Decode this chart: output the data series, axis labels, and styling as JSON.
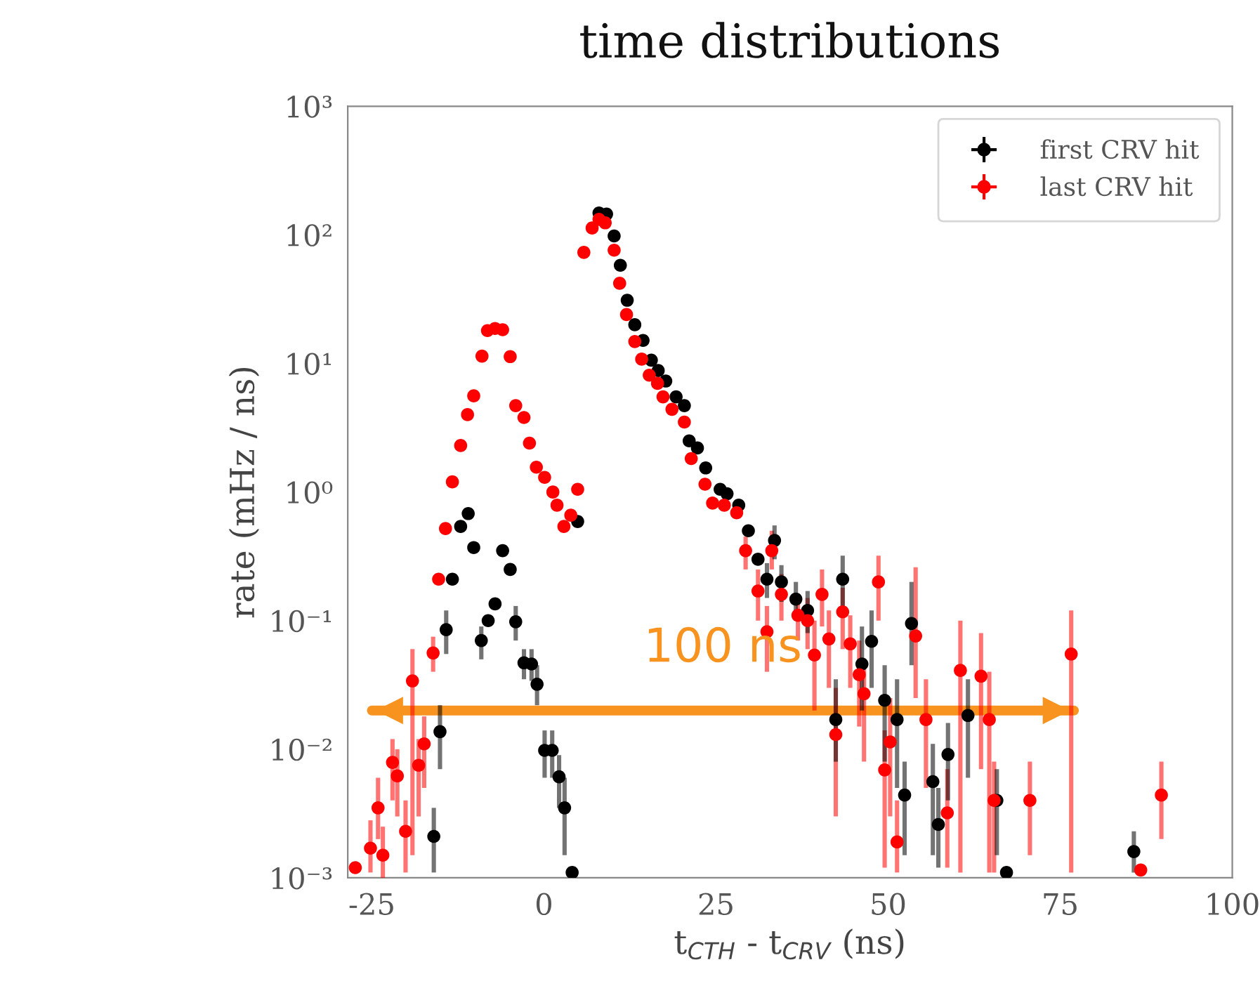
{
  "chart_data": {
    "type": "scatter",
    "title": "time distributions",
    "xlabel": "t$_{CTH}$ - t$_{CRV}$ (ns)",
    "ylabel": "rate (mHz / ns)",
    "log": "y",
    "grid": false,
    "legend": "top right",
    "marker": "circle",
    "xlim": [
      -28.5,
      100
    ],
    "xticks": [
      -25,
      0,
      25,
      50,
      75,
      100
    ],
    "ylim": [
      0.001,
      1000
    ],
    "yticks": [
      {
        "value": 0.001,
        "label": "10⁻³"
      },
      {
        "value": 0.01,
        "label": "10⁻²"
      },
      {
        "value": 0.1,
        "label": "10⁻¹"
      },
      {
        "value": 1,
        "label": "10⁰"
      },
      {
        "value": 10,
        "label": "10¹"
      },
      {
        "value": 100,
        "label": "10²"
      },
      {
        "value": 1000,
        "label": "10³"
      }
    ],
    "annotations": [
      "100 ns"
    ],
    "series": [
      {
        "type": "line",
        "marker": "none",
        "color": "#f7931e",
        "x": [
          -25,
          77
        ],
        "values": [
          0.02,
          0.02
        ]
      },
      {
        "name": "first CRV hit",
        "color": "#000000",
        "x": [
          -16.0,
          -15.1,
          -14.2,
          -13.3,
          -12.1,
          -11.0,
          -10.2,
          -9.1,
          -8.1,
          -7.1,
          -6.0,
          -4.9,
          -4.1,
          -2.9,
          -1.8,
          -1.0,
          0.1,
          1.2,
          2.2,
          3.0,
          4.1,
          4.9,
          8.0,
          9.1,
          10.2,
          11.1,
          12.1,
          13.2,
          14.4,
          15.6,
          16.6,
          17.7,
          19.2,
          20.4,
          21.1,
          22.3,
          23.5,
          25.6,
          26.6,
          28.3,
          29.7,
          31.1,
          32.4,
          33.5,
          34.5,
          36.6,
          38.3,
          42.4,
          43.4,
          46.2,
          47.6,
          49.5,
          51.3,
          52.4,
          53.4,
          56.5,
          57.3,
          58.7,
          61.6,
          65.8,
          67.2,
          85.7
        ],
        "values": [
          0.0021,
          0.0137,
          0.085,
          0.21,
          0.54,
          0.68,
          0.37,
          0.07,
          0.1,
          0.135,
          0.35,
          0.25,
          0.098,
          0.047,
          0.046,
          0.032,
          0.0098,
          0.0098,
          0.0061,
          0.0035,
          0.0011,
          0.59,
          148,
          145,
          98,
          58,
          31,
          20,
          15.1,
          10.6,
          8.8,
          7.3,
          5.5,
          4.7,
          2.5,
          2.2,
          1.54,
          1.05,
          0.97,
          0.79,
          0.5,
          0.3,
          0.21,
          0.42,
          0.2,
          0.147,
          0.12,
          0.017,
          0.21,
          0.046,
          0.069,
          0.024,
          0.017,
          0.0044,
          0.095,
          0.0056,
          0.0026,
          0.0091,
          0.0183,
          0.004,
          0.0011,
          0.0016
        ],
        "errors": [
          [
            0.0011,
            0.0035
          ],
          [
            0.007,
            0.022
          ],
          [
            0.055,
            0.12
          ],
          null,
          null,
          null,
          null,
          [
            0.05,
            0.09
          ],
          null,
          null,
          null,
          null,
          [
            0.07,
            0.13
          ],
          [
            0.035,
            0.06
          ],
          [
            0.034,
            0.06
          ],
          [
            0.022,
            0.045
          ],
          [
            0.006,
            0.014
          ],
          [
            0.006,
            0.014
          ],
          [
            0.0035,
            0.009
          ],
          [
            0.0015,
            0.006
          ],
          null,
          null,
          null,
          null,
          null,
          null,
          null,
          null,
          null,
          null,
          null,
          null,
          null,
          null,
          null,
          null,
          null,
          null,
          null,
          null,
          null,
          null,
          [
            0.15,
            0.28
          ],
          [
            0.3,
            0.55
          ],
          [
            0.14,
            0.27
          ],
          [
            0.1,
            0.2
          ],
          [
            0.08,
            0.17
          ],
          [
            0.008,
            0.035
          ],
          [
            0.12,
            0.32
          ],
          [
            0.02,
            0.09
          ],
          [
            0.03,
            0.12
          ],
          [
            0.008,
            0.045
          ],
          [
            0.005,
            0.035
          ],
          [
            0.0015,
            0.008
          ],
          [
            0.045,
            0.2
          ],
          [
            0.0015,
            0.011
          ],
          [
            0.0012,
            0.005
          ],
          [
            0.004,
            0.016
          ],
          [
            0.006,
            0.035
          ],
          [
            0.0015,
            0.007
          ],
          null,
          [
            0.0011,
            0.0023
          ]
        ]
      },
      {
        "name": "last CRV hit",
        "color": "#ff0000",
        "x": [
          -27.4,
          -25.2,
          -24.1,
          -23.4,
          -22.0,
          -21.3,
          -20.1,
          -19.1,
          -18.2,
          -17.4,
          -16.1,
          -15.3,
          -14.3,
          -13.3,
          -12.1,
          -11.1,
          -10.2,
          -9.0,
          -8.2,
          -7.1,
          -6.0,
          -4.9,
          -4.1,
          -2.9,
          -2.1,
          -1.1,
          0.1,
          1.3,
          1.9,
          2.9,
          3.9,
          4.9,
          5.8,
          7.0,
          8.0,
          8.9,
          10.2,
          11.0,
          12.0,
          13.2,
          14.2,
          15.3,
          16.5,
          17.3,
          18.6,
          20.4,
          21.4,
          23.4,
          24.5,
          26.2,
          28.0,
          29.3,
          31.1,
          32.4,
          33.1,
          34.5,
          36.9,
          38.3,
          39.3,
          40.4,
          41.4,
          42.4,
          43.4,
          44.5,
          45.8,
          46.5,
          48.6,
          49.5,
          50.3,
          51.3,
          54.0,
          55.5,
          58.6,
          60.5,
          63.5,
          64.7,
          65.4,
          70.6,
          76.6,
          86.7,
          89.7
        ],
        "values": [
          0.0012,
          0.0017,
          0.0035,
          0.0015,
          0.0079,
          0.0062,
          0.0023,
          0.034,
          0.0075,
          0.011,
          0.056,
          0.21,
          0.52,
          1.2,
          2.3,
          4.0,
          5.6,
          11.4,
          18,
          18.7,
          18.3,
          11.3,
          4.7,
          3.8,
          2.4,
          1.56,
          1.3,
          1.0,
          0.79,
          0.54,
          0.66,
          1.05,
          73,
          113,
          132,
          124,
          76,
          42,
          24,
          14.8,
          10.8,
          8.1,
          7.0,
          5.5,
          4.4,
          3.5,
          1.82,
          1.15,
          0.82,
          0.79,
          0.69,
          0.35,
          0.17,
          0.082,
          0.35,
          0.16,
          0.11,
          0.1,
          0.054,
          0.16,
          0.072,
          0.013,
          0.117,
          0.066,
          0.038,
          0.027,
          0.2,
          0.0069,
          0.0114,
          0.0019,
          0.076,
          0.017,
          0.0032,
          0.041,
          0.037,
          0.017,
          0.004,
          0.004,
          0.055,
          0.00115,
          0.0044
        ],
        "errors": [
          null,
          [
            0.0011,
            0.0028
          ],
          [
            0.002,
            0.006
          ],
          [
            0.001,
            0.0025
          ],
          [
            0.004,
            0.012
          ],
          [
            0.003,
            0.01
          ],
          [
            0.0011,
            0.004
          ],
          [
            0.0015,
            0.06
          ],
          [
            0.003,
            0.012
          ],
          [
            0.005,
            0.018
          ],
          [
            0.04,
            0.075
          ],
          null,
          null,
          null,
          null,
          null,
          null,
          null,
          null,
          null,
          null,
          null,
          null,
          null,
          null,
          null,
          null,
          null,
          null,
          null,
          null,
          null,
          null,
          null,
          null,
          null,
          null,
          null,
          null,
          null,
          null,
          null,
          null,
          null,
          null,
          null,
          null,
          null,
          null,
          null,
          null,
          [
            0.25,
            0.45
          ],
          [
            0.1,
            0.25
          ],
          [
            0.04,
            0.13
          ],
          [
            0.25,
            0.5
          ],
          [
            0.1,
            0.23
          ],
          [
            0.07,
            0.16
          ],
          [
            0.06,
            0.15
          ],
          [
            0.02,
            0.1
          ],
          [
            0.09,
            0.25
          ],
          [
            0.03,
            0.12
          ],
          [
            0.003,
            0.03
          ],
          [
            0.06,
            0.18
          ],
          [
            0.03,
            0.11
          ],
          [
            0.015,
            0.07
          ],
          [
            0.008,
            0.05
          ],
          [
            0.1,
            0.32
          ],
          [
            0.0012,
            0.014
          ],
          [
            0.003,
            0.025
          ],
          [
            0.0011,
            0.004
          ],
          [
            0.025,
            0.26
          ],
          [
            0.005,
            0.035
          ],
          [
            0.0012,
            0.007
          ],
          [
            0.0011,
            0.1
          ],
          [
            0.007,
            0.08
          ],
          [
            0.0011,
            0.04
          ],
          [
            0.0011,
            0.008
          ],
          [
            0.0015,
            0.008
          ],
          [
            0.0011,
            0.12
          ],
          null,
          [
            0.002,
            0.008
          ]
        ]
      }
    ]
  }
}
